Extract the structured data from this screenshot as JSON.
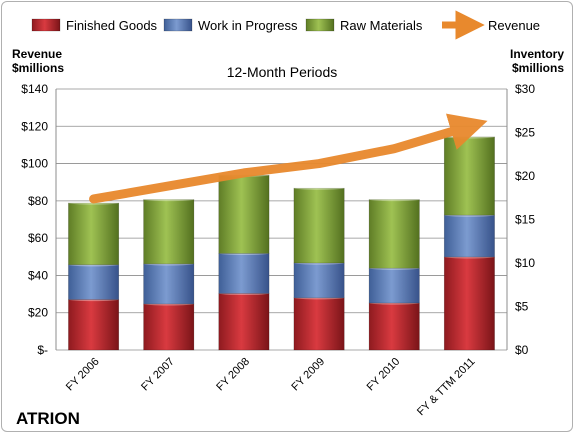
{
  "chart_data": {
    "type": "bar",
    "subtitle": "12-Month Periods",
    "company": "ATRION",
    "left_axis_label": [
      "Revenue",
      "$millions"
    ],
    "right_axis_label": [
      "Inventory",
      "$millions"
    ],
    "categories": [
      "FY 2006",
      "FY 2007",
      "FY 2008",
      "FY 2009",
      "FY 2010",
      "FY & TTM 2011"
    ],
    "left_ticks": [
      "$-",
      "$20",
      "$40",
      "$60",
      "$80",
      "$100",
      "$120",
      "$140"
    ],
    "right_ticks": [
      "$0",
      "$5",
      "$10",
      "$15",
      "$20",
      "$25",
      "$30"
    ],
    "ylim_left": [
      0,
      140
    ],
    "ylim_right": [
      0,
      30
    ],
    "series": [
      {
        "name": "Finished Goods",
        "axis": "right",
        "color": "#c0262c",
        "values": [
          5.8,
          5.3,
          6.5,
          6.0,
          5.4,
          10.7
        ]
      },
      {
        "name": "Work in Progress",
        "axis": "right",
        "color": "#5b7db8",
        "values": [
          4.0,
          4.6,
          4.6,
          4.0,
          4.0,
          4.8
        ]
      },
      {
        "name": "Raw Materials",
        "axis": "right",
        "color": "#86a83e",
        "values": [
          7.1,
          7.4,
          9.0,
          8.6,
          7.9,
          9.0
        ]
      },
      {
        "name": "Revenue",
        "axis": "left",
        "type": "line",
        "color": "#e8892d",
        "values": [
          81,
          88,
          95,
          100,
          108,
          120
        ]
      }
    ],
    "legend_position": "top",
    "grid": true
  }
}
